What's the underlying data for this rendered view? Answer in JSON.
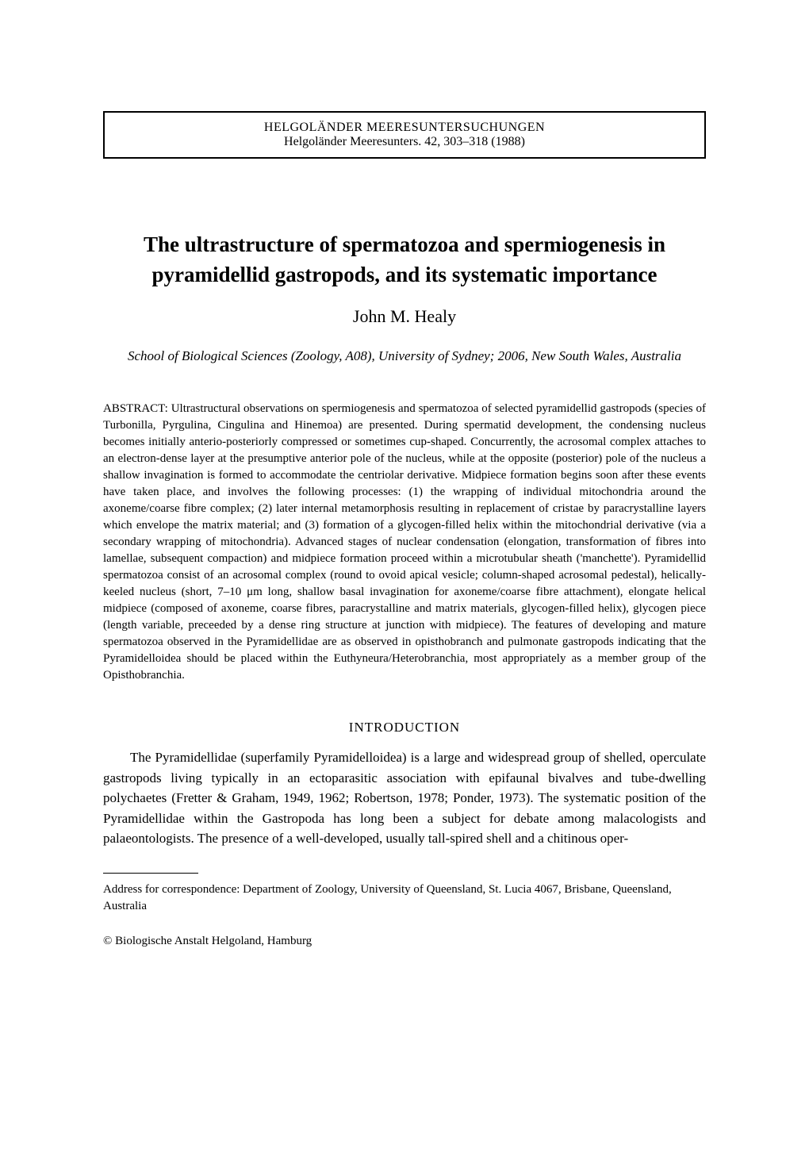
{
  "journal": {
    "name": "HELGOLÄNDER MEERESUNTERSUCHUNGEN",
    "citation": "Helgoländer Meeresunters. 42, 303–318 (1988)"
  },
  "title": "The ultrastructure of spermatozoa and spermiogenesis in pyramidellid gastropods, and its systematic importance",
  "author": "John M. Healy",
  "affiliation": "School of Biological Sciences (Zoology, A08), University of Sydney; 2006, New South Wales, Australia",
  "abstract_label": "ABSTRACT:",
  "abstract": "Ultrastructural observations on spermiogenesis and spermatozoa of selected pyramidellid gastropods (species of Turbonilla, Pyrgulina, Cingulina and Hinemoa) are presented. During spermatid development, the condensing nucleus becomes initially anterio-posteriorly compressed or sometimes cup-shaped. Concurrently, the acrosomal complex attaches to an electron-dense layer at the presumptive anterior pole of the nucleus, while at the opposite (posterior) pole of the nucleus a shallow invagination is formed to accommodate the centriolar derivative. Midpiece formation begins soon after these events have taken place, and involves the following processes: (1) the wrapping of individual mitochondria around the axoneme/coarse fibre complex; (2) later internal metamorphosis resulting in replacement of cristae by paracrystalline layers which envelope the matrix material; and (3) formation of a glycogen-filled helix within the mitochondrial derivative (via a secondary wrapping of mitochondria). Advanced stages of nuclear condensation (elongation, transformation of fibres into lamellae, subsequent compaction) and midpiece formation proceed within a microtubular sheath ('manchette'). Pyramidellid spermatozoa consist of an acrosomal complex (round to ovoid apical vesicle; column-shaped acrosomal pedestal), helically-keeled nucleus (short, 7–10 μm long, shallow basal invagination for axoneme/coarse fibre attachment), elongate helical midpiece (composed of axoneme, coarse fibres, paracrystalline and matrix materials, glycogen-filled helix), glycogen piece (length variable, preceeded by a dense ring structure at junction with midpiece). The features of developing and mature spermatozoa observed in the Pyramidellidae are as observed in opisthobranch and pulmonate gastropods indicating that the Pyramidelloidea should be placed within the Euthyneura/Heterobranchia, most appropriately as a member group of the Opisthobranchia.",
  "section_heading": "INTRODUCTION",
  "body": "The Pyramidellidae (superfamily Pyramidelloidea) is a large and widespread group of shelled, operculate gastropods living typically in an ectoparasitic association with epifaunal bivalves and tube-dwelling polychaetes (Fretter & Graham, 1949, 1962; Robertson, 1978; Ponder, 1973). The systematic position of the Pyramidellidae within the Gastropoda has long been a subject for debate among malacologists and palaeontologists. The presence of a well-developed, usually tall-spired shell and a chitinous oper-",
  "correspondence": "Address for correspondence: Department of Zoology, University of Queensland, St. Lucia 4067, Brisbane, Queensland, Australia",
  "copyright": "© Biologische Anstalt Helgoland, Hamburg"
}
